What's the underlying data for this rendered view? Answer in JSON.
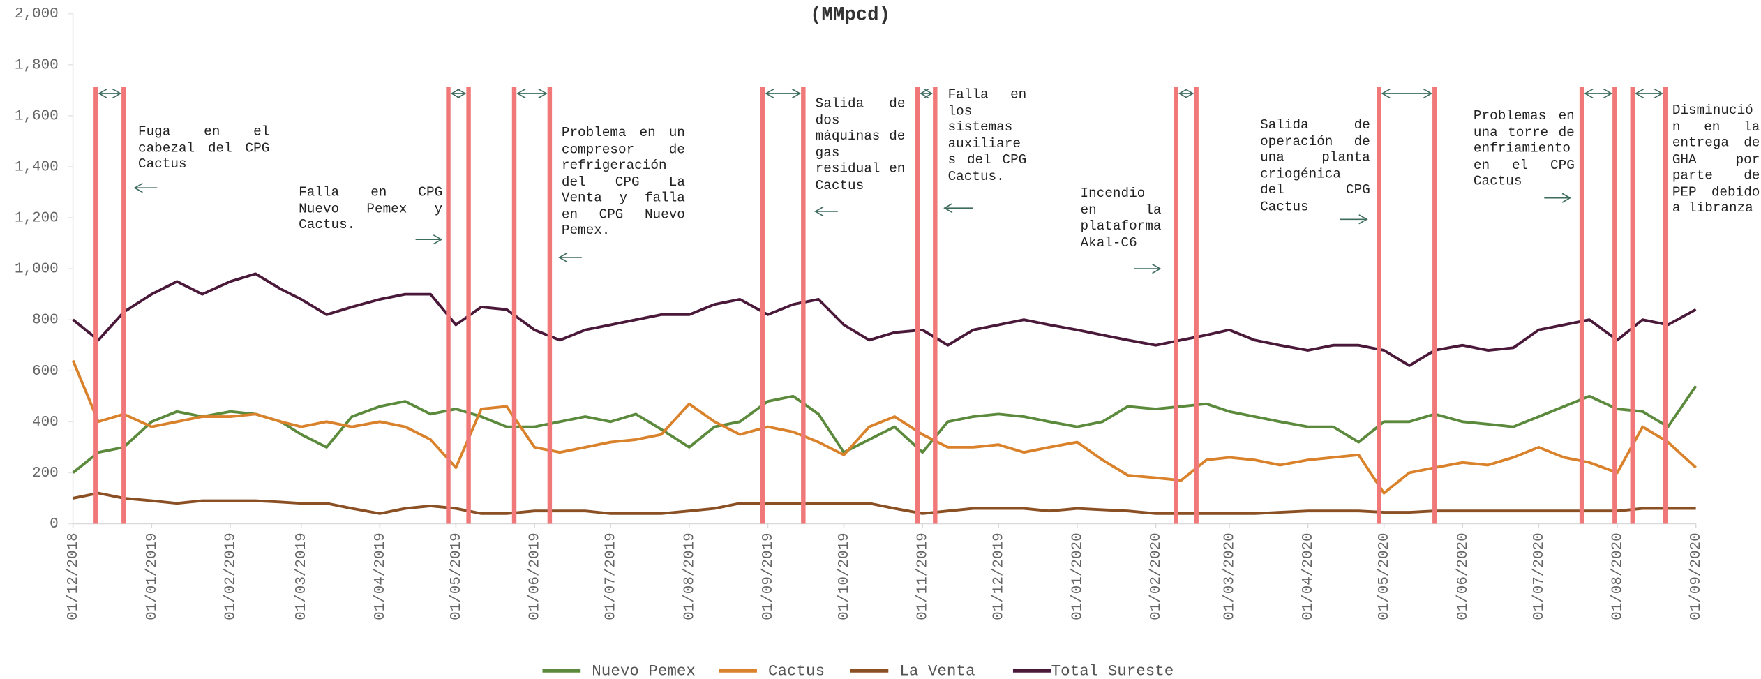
{
  "chart_data": {
    "type": "line",
    "title": "(MMpcd)",
    "x": [
      "01/12/2018",
      "11/12/2018",
      "21/12/2018",
      "01/01/2019",
      "11/01/2019",
      "21/01/2019",
      "01/02/2019",
      "11/02/2019",
      "21/02/2019",
      "01/03/2019",
      "11/03/2019",
      "21/03/2019",
      "01/04/2019",
      "11/04/2019",
      "21/04/2019",
      "01/05/2019",
      "11/05/2019",
      "21/05/2019",
      "01/06/2019",
      "11/06/2019",
      "21/06/2019",
      "01/07/2019",
      "11/07/2019",
      "21/07/2019",
      "01/08/2019",
      "11/08/2019",
      "21/08/2019",
      "01/09/2019",
      "11/09/2019",
      "21/09/2019",
      "01/10/2019",
      "11/10/2019",
      "21/10/2019",
      "01/11/2019",
      "11/11/2019",
      "21/11/2019",
      "01/12/2019",
      "11/12/2019",
      "21/12/2019",
      "01/01/2020",
      "11/01/2020",
      "21/01/2020",
      "01/02/2020",
      "11/02/2020",
      "21/02/2020",
      "01/03/2020",
      "11/03/2020",
      "21/03/2020",
      "01/04/2020",
      "11/04/2020",
      "21/04/2020",
      "01/05/2020",
      "11/05/2020",
      "21/05/2020",
      "01/06/2020",
      "11/06/2020",
      "21/06/2020",
      "01/07/2020",
      "11/07/2020",
      "21/07/2020",
      "01/08/2020",
      "11/08/2020",
      "21/08/2020",
      "01/09/2020"
    ],
    "series": [
      {
        "name": "Nuevo Pemex",
        "color": "#5b8a3c",
        "values": [
          200,
          280,
          300,
          400,
          440,
          420,
          440,
          430,
          400,
          350,
          300,
          420,
          460,
          480,
          430,
          450,
          420,
          380,
          380,
          400,
          420,
          400,
          430,
          370,
          300,
          380,
          400,
          480,
          500,
          430,
          280,
          330,
          380,
          280,
          400,
          420,
          430,
          420,
          400,
          380,
          400,
          460,
          450,
          460,
          470,
          440,
          420,
          400,
          380,
          380,
          320,
          400,
          400,
          430,
          400,
          390,
          380,
          420,
          460,
          500,
          450,
          440,
          380,
          540
        ]
      },
      {
        "name": "Cactus",
        "color": "#d9822b",
        "values": [
          640,
          400,
          430,
          380,
          400,
          420,
          420,
          430,
          400,
          380,
          400,
          380,
          400,
          380,
          330,
          220,
          450,
          460,
          300,
          280,
          300,
          320,
          330,
          350,
          470,
          400,
          350,
          380,
          360,
          320,
          270,
          380,
          420,
          350,
          300,
          300,
          310,
          280,
          300,
          320,
          250,
          190,
          180,
          170,
          250,
          260,
          250,
          230,
          250,
          260,
          270,
          120,
          200,
          220,
          240,
          230,
          260,
          300,
          260,
          240,
          200,
          380,
          320,
          220
        ]
      },
      {
        "name": "La Venta",
        "color": "#8b4f24",
        "values": [
          100,
          120,
          100,
          90,
          80,
          90,
          90,
          90,
          85,
          80,
          80,
          60,
          40,
          60,
          70,
          60,
          40,
          40,
          50,
          50,
          50,
          40,
          40,
          40,
          50,
          60,
          80,
          80,
          80,
          80,
          80,
          80,
          60,
          40,
          50,
          60,
          60,
          60,
          50,
          60,
          55,
          50,
          40,
          40,
          40,
          40,
          40,
          45,
          50,
          50,
          50,
          45,
          45,
          50,
          50,
          50,
          50,
          50,
          50,
          50,
          50,
          60,
          60,
          60
        ]
      },
      {
        "name": "Total Sureste",
        "color": "#4a1838",
        "values": [
          800,
          720,
          830,
          900,
          950,
          900,
          950,
          980,
          920,
          880,
          820,
          850,
          880,
          900,
          900,
          780,
          850,
          840,
          760,
          720,
          760,
          780,
          800,
          820,
          820,
          860,
          880,
          820,
          860,
          880,
          780,
          720,
          750,
          760,
          700,
          760,
          780,
          800,
          780,
          760,
          740,
          720,
          700,
          720,
          740,
          760,
          720,
          700,
          680,
          700,
          700,
          680,
          620,
          680,
          700,
          680,
          690,
          760,
          780,
          800,
          720,
          800,
          780,
          840
        ]
      }
    ],
    "xlim": [
      "01/12/2018",
      "01/09/2020"
    ],
    "xticks": [
      "01/12/2018",
      "01/01/2019",
      "01/02/2019",
      "01/03/2019",
      "01/04/2019",
      "01/05/2019",
      "01/06/2019",
      "01/07/2019",
      "01/08/2019",
      "01/09/2019",
      "01/10/2019",
      "01/11/2019",
      "01/12/2019",
      "01/01/2020",
      "01/02/2020",
      "01/03/2020",
      "01/04/2020",
      "01/05/2020",
      "01/06/2020",
      "01/07/2020",
      "01/08/2020",
      "01/09/2020"
    ],
    "ylim": [
      0,
      2000
    ],
    "yticks": [
      0,
      200,
      400,
      600,
      800,
      {
        "value": 1000,
        "label": "1,000"
      },
      {
        "value": 1200,
        "label": "1,200"
      },
      {
        "value": 1400,
        "label": "1,400"
      },
      {
        "value": 1600,
        "label": "1,600"
      },
      {
        "value": 1800,
        "label": "1,800"
      },
      {
        "value": 2000,
        "label": "2,000"
      }
    ],
    "event_color": "#f07878",
    "events": [
      {
        "start": "10/12/2018",
        "end": "21/12/2018",
        "text": "Fuga en el cabezal del CPG Cactus"
      },
      {
        "start": "28/04/2019",
        "end": "06/05/2019",
        "text": "Falla en CPG Nuevo Pemex y Cactus."
      },
      {
        "start": "24/05/2019",
        "end": "07/06/2019",
        "text": "Problema en un compresor de refrigeración del CPG La Venta y falla en CPG Nuevo Pemex."
      },
      {
        "start": "30/08/2019",
        "end": "15/09/2019",
        "text": "Salida de dos máquinas de gas residual en Cactus"
      },
      {
        "start": "30/10/2019",
        "end": "06/11/2019",
        "text": "Falla en los sistemas auxiliares del CPG Cactus."
      },
      {
        "start": "09/02/2020",
        "end": "17/02/2020",
        "text": "Incendio en la plataforma Akal-C6"
      },
      {
        "start": "29/04/2020",
        "end": "21/05/2020",
        "text": "Salida de operación de una planta criogénica del CPG Cactus"
      },
      {
        "start": "18/07/2020",
        "end": "31/07/2020",
        "text": "Problemas en una torre de enfriamiento en el CPG Cactus"
      },
      {
        "start": "07/08/2020",
        "end": "20/08/2020",
        "text": "Disminución en la entrega de GHA por parte de PEP debido a libranza"
      }
    ]
  }
}
